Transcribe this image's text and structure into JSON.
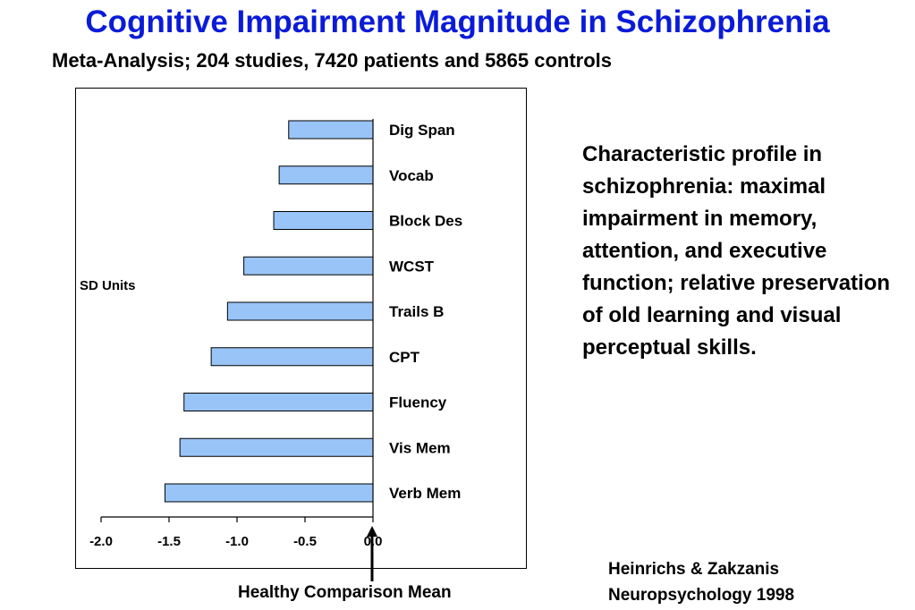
{
  "title": "Cognitive Impairment Magnitude in Schizophrenia",
  "subtitle": "Meta-Analysis; 204 studies, 7420 patients and 5865 controls",
  "profile_text": "Characteristic profile in schizophrenia: maximal impairment in memory, attention, and executive function; relative preservation of old learning and visual perceptual skills.",
  "healthy_label": "Healthy Comparison Mean",
  "citation": {
    "authors": "Heinrichs & Zakzanis",
    "journal": "Neuropsychology 1998"
  },
  "colors": {
    "title": "#0a1bd8",
    "bar_fill": "#99c4f7",
    "bar_stroke": "#000000"
  },
  "chart_data": {
    "type": "bar",
    "orientation": "horizontal",
    "title": "",
    "xlabel": "",
    "ylabel": "SD Units",
    "categories": [
      "Dig Span",
      "Vocab",
      "Block Des",
      "WCST",
      "Trails B",
      "CPT",
      "Fluency",
      "Vis Mem",
      "Verb Mem"
    ],
    "values": [
      -0.62,
      -0.69,
      -0.73,
      -0.95,
      -1.07,
      -1.19,
      -1.39,
      -1.42,
      -1.53
    ],
    "xlim": [
      -2.0,
      0.0
    ],
    "xticks": [
      "-2.0",
      "-1.5",
      "-1.0",
      "-0.5",
      "0.0"
    ],
    "grid": false,
    "legend": "none"
  }
}
